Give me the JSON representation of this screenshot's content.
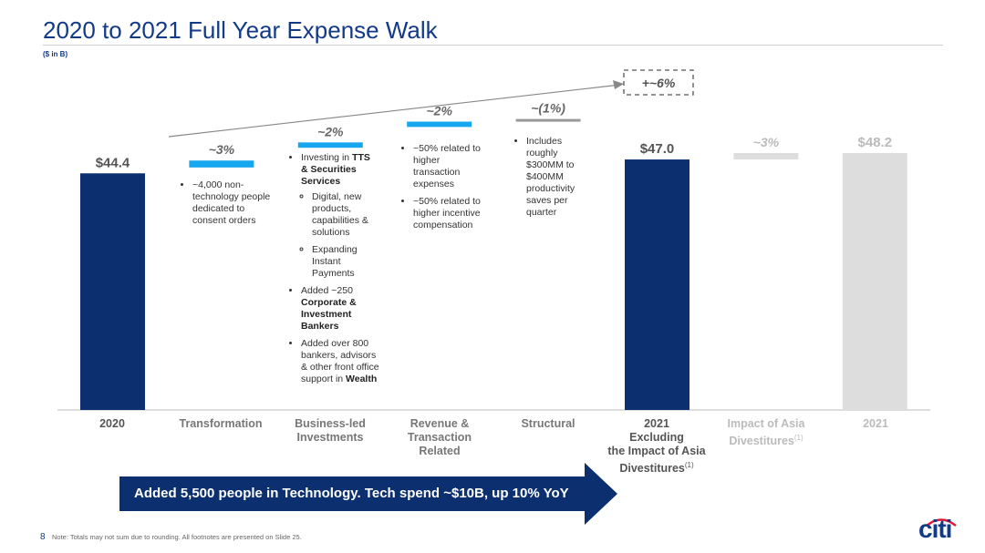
{
  "title": "2020 to 2021 Full Year Expense Walk",
  "subtitle": "($ in B)",
  "chart_data": {
    "type": "bar",
    "subtype": "waterfall",
    "ylim": [
      0,
      50
    ],
    "categories": [
      "2020",
      "Transformation",
      "Business-led Investments",
      "Revenue & Transaction Related",
      "Structural",
      "2021 Excluding the Impact of Asia Divestitures(1)",
      "Impact of Asia Divestitures(1)",
      "2021"
    ],
    "bars": [
      {
        "category": "2020",
        "kind": "total",
        "value": 44.4,
        "label": "$44.4",
        "color": "#0b2f6f"
      },
      {
        "category": "Transformation",
        "kind": "increase",
        "base": 45.5,
        "value": 1.3,
        "label": "~3%",
        "color": "#16a7ef"
      },
      {
        "category": "Business-led Investments",
        "kind": "increase",
        "base": 49.2,
        "value": 1.0,
        "label": "~2%",
        "color": "#16a7ef"
      },
      {
        "category": "Revenue & Transaction Related",
        "kind": "increase",
        "base": 53.1,
        "value": 1.0,
        "label": "~2%",
        "color": "#16a7ef"
      },
      {
        "category": "Structural",
        "kind": "decrease",
        "base": 54.6,
        "value": -0.3,
        "label": "~(1%)",
        "color": "#999999"
      },
      {
        "category": "2021 Excluding the Impact of Asia Divestitures(1)",
        "kind": "total",
        "value": 47.0,
        "label": "$47.0",
        "color": "#0b2f6f"
      },
      {
        "category": "Impact of Asia Divestitures(1)",
        "kind": "increase",
        "base": 47.0,
        "value": 1.2,
        "label": "~3%",
        "color": "#dddddd"
      },
      {
        "category": "2021",
        "kind": "total",
        "value": 48.2,
        "label": "$48.2",
        "color": "#dddddd"
      }
    ],
    "annotation": "+~6%"
  },
  "notes": {
    "transformation": [
      "~4,000 non-technology people dedicated to consent orders"
    ],
    "business": {
      "b1_pre": "Investing in ",
      "b1_bold1": "TTS",
      "b1_bold2": "& Securities Services",
      "b1_sub1": "Digital, new products, capabilities & solutions",
      "b1_sub2": "Expanding Instant Payments",
      "b2_pre": "Added ~250 ",
      "b2_bold": "Corporate & Investment Bankers",
      "b3_pre": "Added over 800 bankers, advisors & other front office support in ",
      "b3_bold": "Wealth"
    },
    "revenue": [
      "~50% related to higher transaction expenses",
      "~50% related to higher incentive compensation"
    ],
    "structural": [
      "Includes roughly $300MM to $400MM productivity saves per quarter"
    ]
  },
  "cat_labels": {
    "c1": "2020",
    "c2": "Transformation",
    "c3a": "Business-led",
    "c3b": "Investments",
    "c4a": "Revenue &",
    "c4b": "Transaction",
    "c4c": "Related",
    "c5": "Structural",
    "c6a": "2021",
    "c6b": "Excluding",
    "c6c": "the Impact of Asia",
    "c6d": "Divestitures",
    "c6sup": "(1)",
    "c7a": "Impact of Asia",
    "c7b": "Divestitures",
    "c7sup": "(1)",
    "c8": "2021"
  },
  "banner": "Added 5,500 people in Technology. Tech spend ~$10B, up 10% YoY",
  "footer": {
    "page_number": "8",
    "note": "Note:  Totals may not sum due to rounding.  All footnotes are presented on Slide 25."
  },
  "logo": "citi",
  "colors": {
    "navy": "#0b2f6f",
    "blue": "#16a7ef",
    "gray": "#999999",
    "light_gray": "#dddddd",
    "title": "#123a86"
  }
}
